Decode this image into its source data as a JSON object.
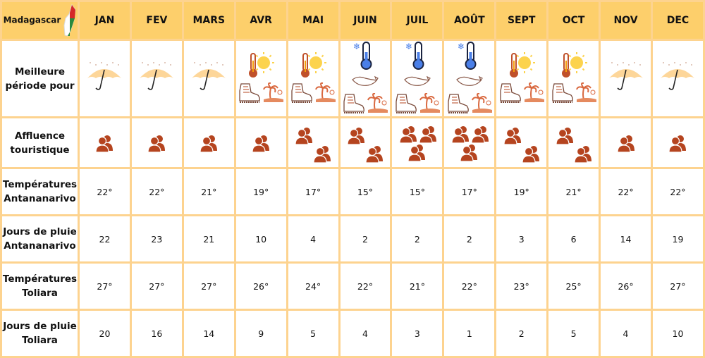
{
  "header": {
    "country": "Madagascar",
    "flag_icon": "madagascar-map-flag-icon",
    "months": [
      "JAN",
      "FEV",
      "MARS",
      "AVR",
      "MAI",
      "JUIN",
      "JUIL",
      "AOÛT",
      "SEPT",
      "OCT",
      "NOV",
      "DEC"
    ]
  },
  "rows": {
    "best": {
      "label": "Meilleure période pour",
      "icons": [
        [
          "umbrella-rain-icon"
        ],
        [
          "umbrella-rain-icon"
        ],
        [
          "umbrella-rain-icon"
        ],
        [
          "hot-thermometer-sun-icon",
          "hiking-boot-icon",
          "beach-palm-icon"
        ],
        [
          "hot-thermometer-sun-icon",
          "hiking-boot-icon",
          "beach-palm-icon"
        ],
        [
          "cold-thermometer-icon",
          "whale-icon",
          "hiking-boot-icon",
          "beach-palm-icon"
        ],
        [
          "cold-thermometer-icon",
          "whale-icon",
          "hiking-boot-icon",
          "beach-palm-icon"
        ],
        [
          "cold-thermometer-icon",
          "whale-icon",
          "hiking-boot-icon",
          "beach-palm-icon"
        ],
        [
          "hot-thermometer-sun-icon",
          "hiking-boot-icon",
          "beach-palm-icon"
        ],
        [
          "hot-thermometer-sun-icon",
          "hiking-boot-icon",
          "beach-palm-icon"
        ],
        [
          "umbrella-rain-icon"
        ],
        [
          "umbrella-rain-icon"
        ]
      ]
    },
    "affluence": {
      "label": "Affluence touristique",
      "levels": [
        1,
        1,
        1,
        1,
        2,
        2,
        3,
        3,
        2,
        2,
        1,
        1
      ]
    },
    "temp_tana": {
      "label": "Températures Antananarivo",
      "values": [
        "22°",
        "22°",
        "21°",
        "19°",
        "17°",
        "15°",
        "15°",
        "17°",
        "19°",
        "21°",
        "22°",
        "22°"
      ]
    },
    "rain_tana": {
      "label": "Jours de pluie Antananarivo",
      "values": [
        "22",
        "23",
        "21",
        "10",
        "4",
        "2",
        "2",
        "2",
        "3",
        "6",
        "14",
        "19"
      ]
    },
    "temp_toliara": {
      "label": "Températures Toliara",
      "values": [
        "27°",
        "27°",
        "27°",
        "26°",
        "24°",
        "22°",
        "21°",
        "22°",
        "23°",
        "25°",
        "26°",
        "27°"
      ]
    },
    "rain_toliara": {
      "label": "Jours de pluie Toliara",
      "values": [
        "20",
        "16",
        "14",
        "9",
        "5",
        "4",
        "3",
        "1",
        "2",
        "5",
        "4",
        "10"
      ]
    }
  },
  "colors": {
    "header_bg": "#fdcf6b",
    "border": "#fdd38f",
    "people": "#b5441f",
    "umbrella": "#fdd699",
    "cold": "#4a7fe8",
    "hot": "#c0502a",
    "sun": "#fcd34d"
  }
}
